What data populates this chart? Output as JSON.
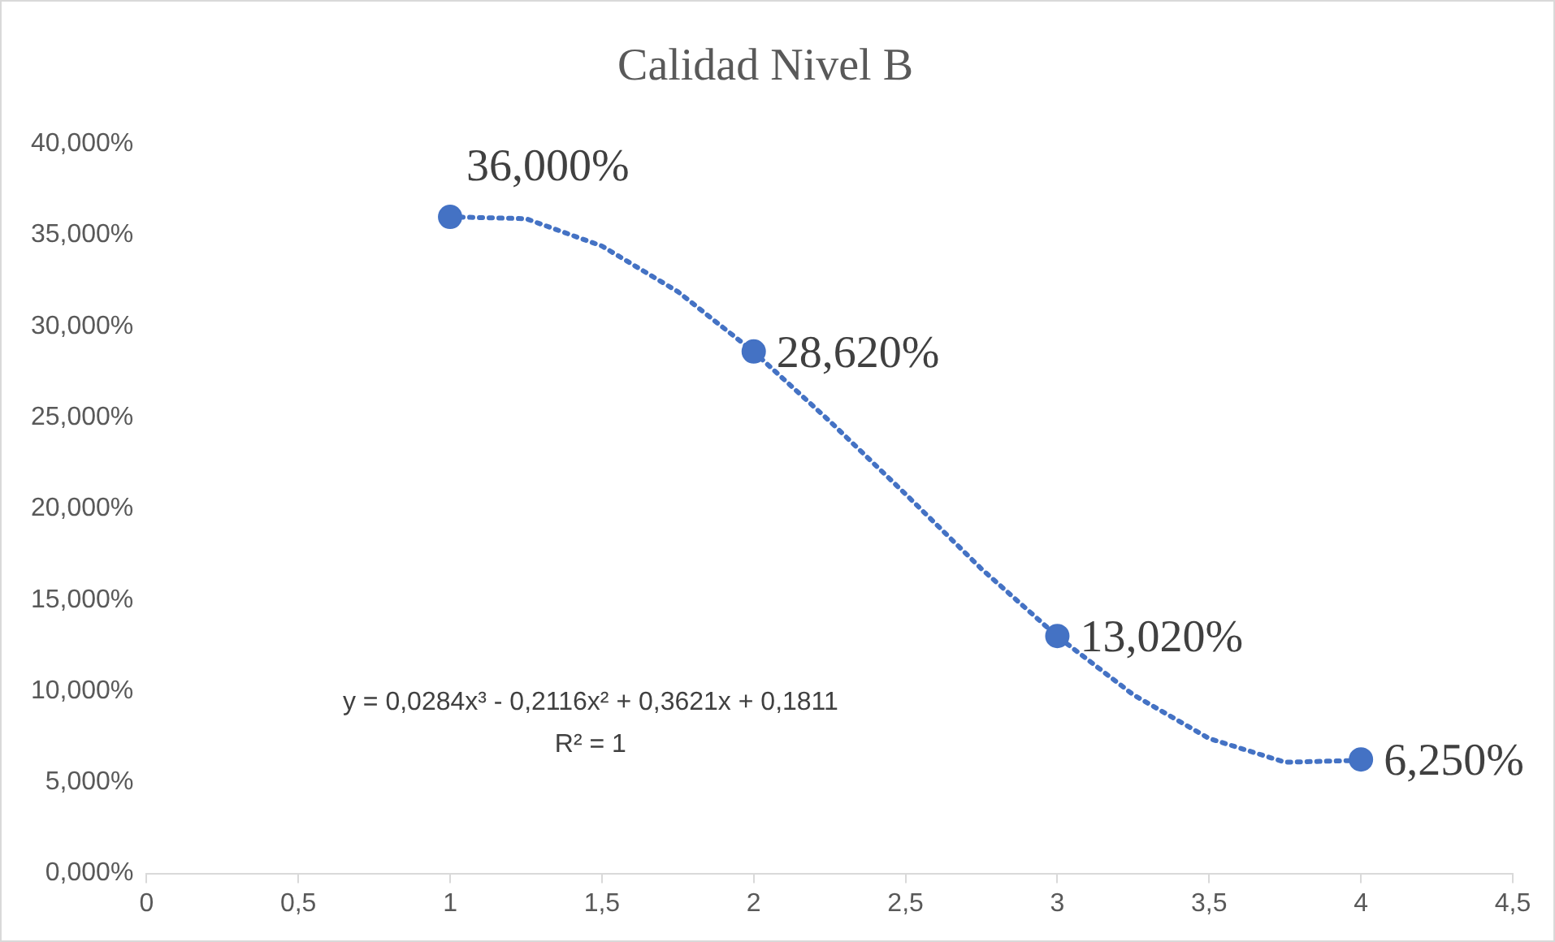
{
  "chart_data": {
    "type": "scatter",
    "title": "Calidad Nivel B",
    "series": [
      {
        "color": "#4472c4",
        "marker": "circle",
        "x": [
          1,
          2,
          3,
          4
        ],
        "values": [
          36,
          28.62,
          13.02,
          6.25
        ],
        "value_labels": [
          "36,000%",
          "28,620%",
          "13,020%",
          "6,250%"
        ]
      },
      {
        "type": "line",
        "color": "#4472c4",
        "marker": "none",
        "line_style": "dotted",
        "x": [
          1,
          1.25,
          1.5,
          1.75,
          2,
          2.25,
          2.5,
          2.75,
          3,
          3.25,
          3.5,
          3.75,
          4
        ],
        "values": [
          36.0,
          35.9,
          34.4,
          31.9,
          28.6,
          24.8,
          20.8,
          16.7,
          13.0,
          9.8,
          7.4,
          6.1,
          6.2
        ]
      }
    ],
    "xlim": [
      0,
      4.5
    ],
    "xticks": [
      0,
      {
        "value": 0.5,
        "label": "0,5"
      },
      1,
      {
        "value": 1.5,
        "label": "1,5"
      },
      2,
      {
        "value": 2.5,
        "label": "2,5"
      },
      3,
      {
        "value": 3.5,
        "label": "3,5"
      },
      4,
      {
        "value": 4.5,
        "label": "4,5"
      }
    ],
    "ylim": [
      0,
      40
    ],
    "yticks": [
      {
        "value": 0,
        "label": "0,000%"
      },
      {
        "value": 5,
        "label": "5,000%"
      },
      {
        "value": 10,
        "label": "10,000%"
      },
      {
        "value": 15,
        "label": "15,000%"
      },
      {
        "value": 20,
        "label": "20,000%"
      },
      {
        "value": 25,
        "label": "25,000%"
      },
      {
        "value": 30,
        "label": "30,000%"
      },
      {
        "value": 35,
        "label": "35,000%"
      },
      {
        "value": 40,
        "label": "40,000%"
      }
    ],
    "grid": false,
    "legend": false,
    "annotations": [
      "y = 0,0284x³ - 0,2116x² + 0,3621x + 0,1811",
      "R² = 1"
    ]
  }
}
